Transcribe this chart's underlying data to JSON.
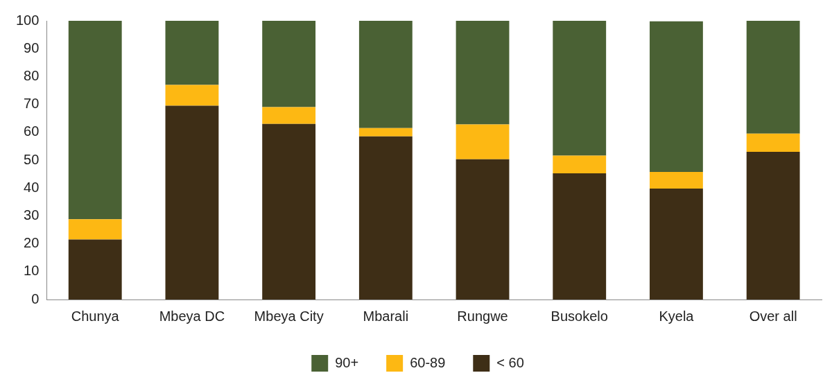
{
  "chart_data": {
    "type": "bar",
    "stacked": true,
    "categories": [
      "Chunya",
      "Mbeya DC",
      "Mbeya City",
      "Mbarali",
      "Rungwe",
      "Busokelo",
      "Kyela",
      "Over all"
    ],
    "series": [
      {
        "name": "< 60",
        "color": "#3e2e16",
        "values": [
          21.5,
          69.5,
          63,
          58.5,
          50.3,
          45.3,
          39.8,
          53
        ]
      },
      {
        "name": "60-89",
        "color": "#fdb813",
        "values": [
          7.3,
          7.5,
          6,
          3,
          12.5,
          6.3,
          6,
          6.5
        ]
      },
      {
        "name": "90+",
        "color": "#4a6134",
        "values": [
          71.2,
          23,
          31,
          38.5,
          37.2,
          48.4,
          54,
          40.5
        ]
      }
    ],
    "ylim": [
      0,
      100
    ],
    "yticks": [
      0,
      10,
      20,
      30,
      40,
      50,
      60,
      70,
      80,
      90,
      100
    ],
    "grid": false,
    "legend": "bottom"
  }
}
